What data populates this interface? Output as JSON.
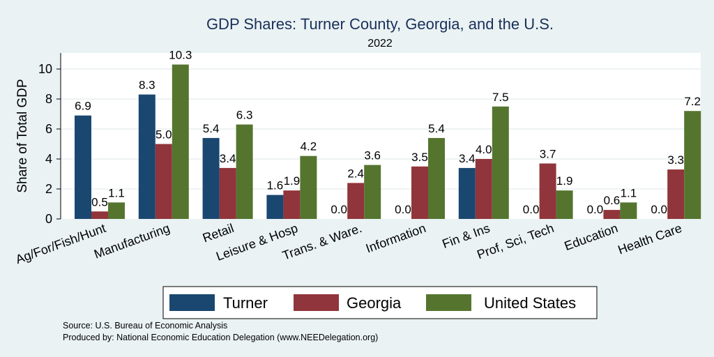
{
  "chart_data": {
    "type": "bar",
    "title": "GDP Shares: Turner County, Georgia, and the U.S.",
    "subtitle": "2022",
    "ylabel": "Share of Total GDP",
    "ylim": [
      0,
      11
    ],
    "yticks": [
      0,
      2,
      4,
      6,
      8,
      10
    ],
    "grid": true,
    "legend_position": "bottom",
    "categories": [
      "Ag/For/Fish/Hunt",
      "Manufacturing",
      "Retail",
      "Leisure & Hosp",
      "Trans. & Ware.",
      "Information",
      "Fin & Ins",
      "Prof, Sci, Tech",
      "Education",
      "Health Care"
    ],
    "series": [
      {
        "name": "Turner",
        "color": "#1a476f",
        "values": [
          6.9,
          8.3,
          5.4,
          1.6,
          0.0,
          0.0,
          3.4,
          0.0,
          0.0,
          0.0
        ],
        "labels": [
          "6.9",
          "8.3",
          "5.4",
          "1.6",
          "0.0",
          "0.0",
          "3.4",
          "0.0",
          "0.0",
          "0.0"
        ]
      },
      {
        "name": "Georgia",
        "color": "#90353b",
        "values": [
          0.5,
          5.0,
          3.4,
          1.9,
          2.4,
          3.5,
          4.0,
          3.7,
          0.6,
          3.3
        ],
        "labels": [
          "0.5",
          "5.0",
          "3.4",
          "1.9",
          "2.4",
          "3.5",
          "4.0",
          "3.7",
          "0.6",
          "3.3"
        ]
      },
      {
        "name": "United States",
        "color": "#55752f",
        "values": [
          1.1,
          10.3,
          6.3,
          4.2,
          3.6,
          5.4,
          7.5,
          1.9,
          1.1,
          7.2
        ],
        "labels": [
          "1.1",
          "10.3",
          "6.3",
          "4.2",
          "3.6",
          "5.4",
          "7.5",
          "1.9",
          "1.1",
          "7.2"
        ]
      }
    ],
    "notes": [
      "Source: U.S. Bureau of Economic Analysis",
      "Produced by: National Economic Education Delegation (www.NEEDelegation.org)"
    ]
  }
}
